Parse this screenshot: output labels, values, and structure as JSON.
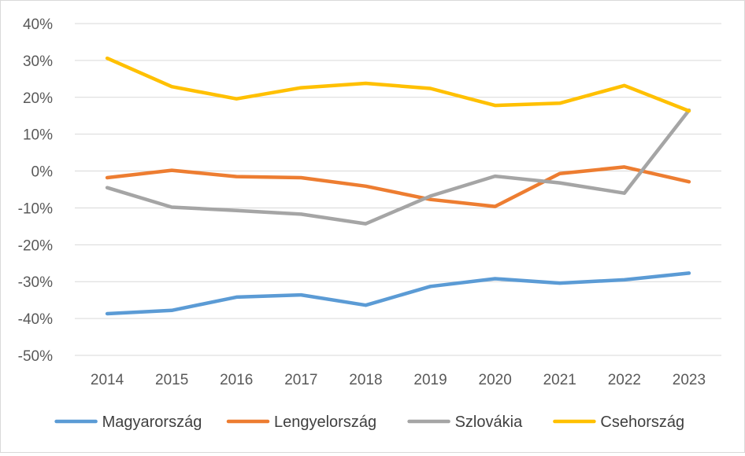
{
  "chart_data": {
    "type": "line",
    "title": "",
    "xlabel": "",
    "ylabel": "",
    "x": [
      "2014",
      "2015",
      "2016",
      "2017",
      "2018",
      "2019",
      "2020",
      "2021",
      "2022",
      "2023"
    ],
    "ylim": [
      -50,
      40
    ],
    "yticks": [
      40,
      30,
      20,
      10,
      0,
      -10,
      -20,
      -30,
      -40,
      -50
    ],
    "ytick_labels": [
      "40%",
      "30%",
      "20%",
      "10%",
      "0%",
      "-10%",
      "-20%",
      "-30%",
      "-40%",
      "-50%"
    ],
    "grid": true,
    "legend_position": "bottom",
    "series": [
      {
        "name": "Magyarország",
        "color": "#5b9bd5",
        "values": [
          -38.7,
          -37.8,
          -34.2,
          -33.6,
          -36.4,
          -31.3,
          -29.2,
          -30.4,
          -29.5,
          -27.7
        ]
      },
      {
        "name": "Lengyelország",
        "color": "#ed7d31",
        "values": [
          -1.8,
          0.2,
          -1.5,
          -1.8,
          -4.1,
          -7.7,
          -9.6,
          -0.7,
          1.1,
          -2.9
        ]
      },
      {
        "name": "Szlovákia",
        "color": "#a5a5a5",
        "values": [
          -4.5,
          -9.8,
          -10.7,
          -11.7,
          -14.3,
          -6.8,
          -1.4,
          -3.2,
          -6.0,
          16.5
        ]
      },
      {
        "name": "Csehország",
        "color": "#ffc000",
        "values": [
          30.6,
          22.9,
          19.6,
          22.6,
          23.8,
          22.4,
          17.8,
          18.4,
          23.2,
          16.3
        ]
      }
    ]
  }
}
